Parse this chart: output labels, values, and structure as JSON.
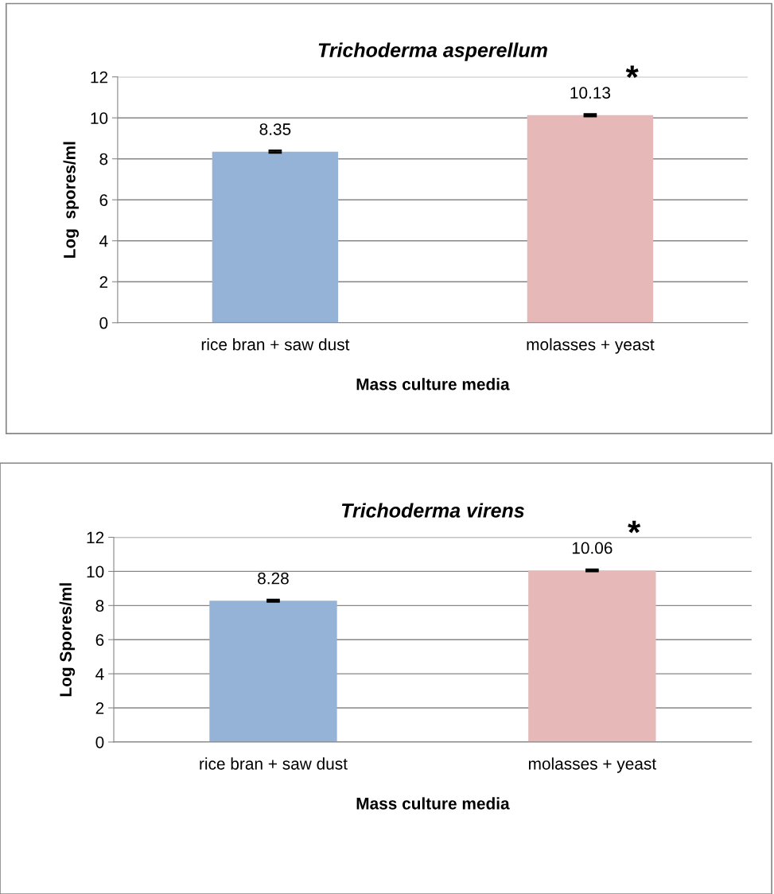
{
  "chart_data": [
    {
      "type": "bar",
      "title": "Trichoderma asperellum",
      "xlabel": "Mass culture media",
      "ylabel": "Log  spores/ml",
      "categories": [
        "rice bran + saw dust",
        "molasses + yeast"
      ],
      "values": [
        8.35,
        10.13
      ],
      "colors": [
        "#95b3d7",
        "#e6b9b8"
      ],
      "errors": [
        0.05,
        0.05
      ],
      "data_labels": true,
      "ylim": [
        0,
        12
      ],
      "yticks": [
        0,
        2,
        4,
        6,
        8,
        10,
        12
      ],
      "grid": "y",
      "legend": false,
      "annotations": [
        {
          "text": "*",
          "x": "molasses + yeast",
          "y": 10.13
        }
      ]
    },
    {
      "type": "bar",
      "title": "Trichoderma virens",
      "xlabel": "Mass culture media",
      "ylabel": "Log Spores/ml",
      "categories": [
        "rice bran + saw dust",
        "molasses + yeast"
      ],
      "values": [
        8.28,
        10.06
      ],
      "colors": [
        "#95b3d7",
        "#e6b9b8"
      ],
      "errors": [
        0.05,
        0.05
      ],
      "data_labels": true,
      "ylim": [
        0,
        12
      ],
      "yticks": [
        0,
        2,
        4,
        6,
        8,
        10,
        12
      ],
      "grid": "y",
      "legend": false,
      "annotations": [
        {
          "text": "*",
          "x": "molasses + yeast",
          "y": 10.06
        }
      ]
    }
  ]
}
